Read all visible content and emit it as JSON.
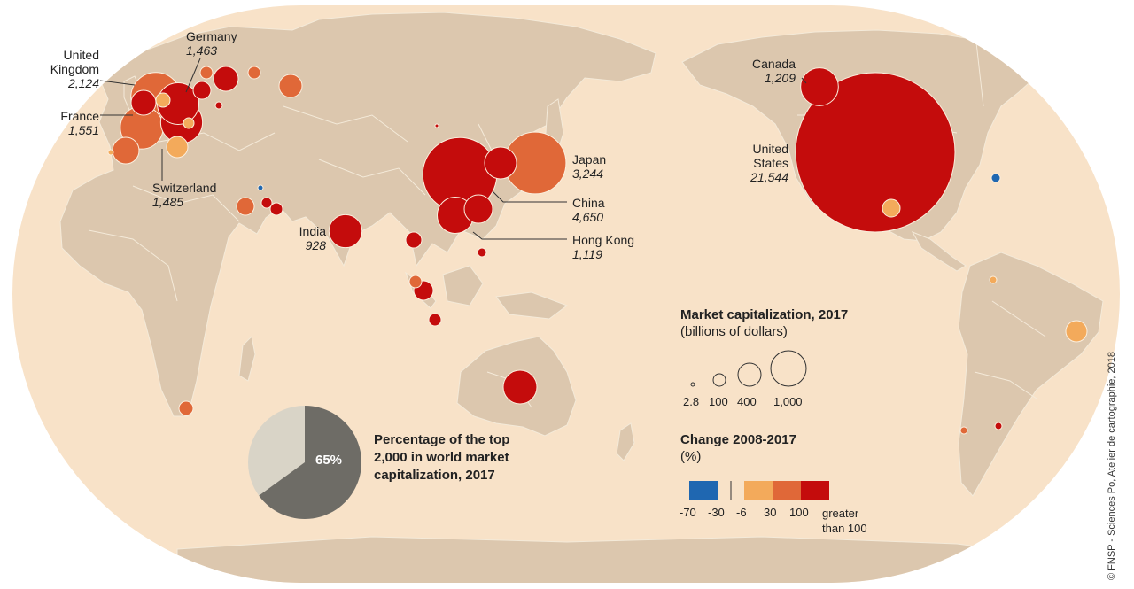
{
  "colors": {
    "ocean": "#f8e2c8",
    "land": "#dcc7ae",
    "border": "#f4ead9",
    "cat_neg": "#1f67b1",
    "cat_low": "#f3aa5b",
    "cat_mid": "#e06838",
    "cat_high": "#c40c0c",
    "pie_main": "#6e6c66",
    "pie_rest": "#d9d4c7"
  },
  "countries": [
    {
      "id": "united-states",
      "name": "United States",
      "value": "21,544",
      "category": "high"
    },
    {
      "id": "china",
      "name": "China",
      "value": "4,650",
      "category": "high"
    },
    {
      "id": "japan",
      "name": "Japan",
      "value": "3,244",
      "category": "mid"
    },
    {
      "id": "united-kingdom",
      "name": "United Kingdom",
      "value": "2,124",
      "category": "mid"
    },
    {
      "id": "france",
      "name": "France",
      "value": "1,551",
      "category": "mid"
    },
    {
      "id": "switzerland",
      "name": "Switzerland",
      "value": "1,485",
      "category": "high"
    },
    {
      "id": "germany",
      "name": "Germany",
      "value": "1,463",
      "category": "high"
    },
    {
      "id": "canada",
      "name": "Canada",
      "value": "1,209",
      "category": "high"
    },
    {
      "id": "hong-kong",
      "name": "Hong Kong",
      "value": "1,119",
      "category": "high"
    },
    {
      "id": "india",
      "name": "India",
      "value": "928",
      "category": "high"
    }
  ],
  "labels": {
    "uk_line1": "United",
    "uk_line2": "Kingdom",
    "us_line1": "United",
    "us_line2": "States"
  },
  "size_legend": {
    "title": "Market capitalization, 2017",
    "subtitle": "(billions of dollars)",
    "values": [
      "2.8",
      "100",
      "400",
      "1,000"
    ]
  },
  "change_legend": {
    "title": "Change 2008-2017",
    "subtitle": "(%)",
    "ticks": [
      "-70",
      "-30",
      "-6",
      "30",
      "100"
    ],
    "last_tick_line1": "greater",
    "last_tick_line2": "than 100"
  },
  "pie": {
    "percent": 65,
    "percent_label": "65%",
    "title_line1": "Percentage of the top",
    "title_line2": "2,000 in world market",
    "title_line3": "capitalization, 2017"
  },
  "credit": "© FNSP - Sciences Po, Atelier de cartographie, 2018"
}
